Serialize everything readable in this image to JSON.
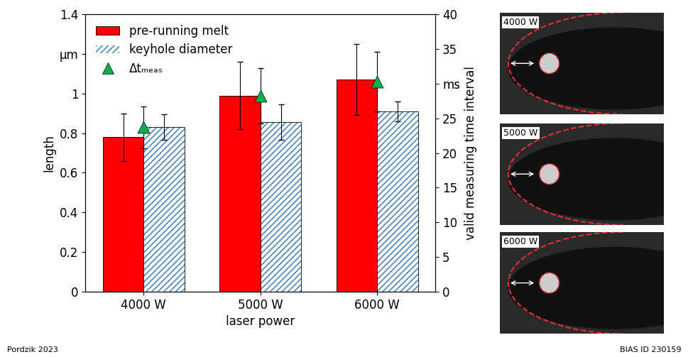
{
  "chart_data": {
    "type": "bar",
    "categories": [
      "4000 W",
      "5000 W",
      "6000 W"
    ],
    "x_label": "laser power",
    "y_label": "length",
    "y2_label": "valid measuring time interval",
    "ylim": [
      0,
      1.4
    ],
    "yticks": [
      0,
      0.2,
      0.4,
      0.6,
      0.8,
      1,
      {
        "value": 1.2,
        "label": "μm"
      },
      1.4
    ],
    "y2lim": [
      0,
      40
    ],
    "y2ticks": [
      0,
      5,
      10,
      15,
      20,
      25,
      {
        "value": 30,
        "label": "ms"
      },
      35,
      40
    ],
    "legend": "upper left",
    "series": [
      {
        "name": "pre-running melt",
        "type": "bar",
        "color": "#ff0000",
        "values": [
          0.78,
          0.99,
          1.07
        ],
        "error": [
          0.12,
          0.17,
          0.18
        ]
      },
      {
        "name": "keyhole diameter",
        "type": "bar",
        "color": "#2e75b6",
        "values": [
          0.83,
          0.855,
          0.91
        ],
        "error": [
          0.065,
          0.09,
          0.05
        ]
      },
      {
        "name": "Δtₘₑₐₛ",
        "type": "scatter",
        "axis": "y2",
        "color": "#00b050",
        "marker": "triangle",
        "values": [
          23.7,
          28.2,
          30.3
        ],
        "error": [
          3.0,
          4.0,
          4.3
        ]
      }
    ],
    "images": [
      {
        "label": "4000 W"
      },
      {
        "label": "5000 W"
      },
      {
        "label": "6000 W"
      }
    ],
    "footer_left": "Pordzik 2023",
    "footer_right": "BIAS ID 230159"
  }
}
